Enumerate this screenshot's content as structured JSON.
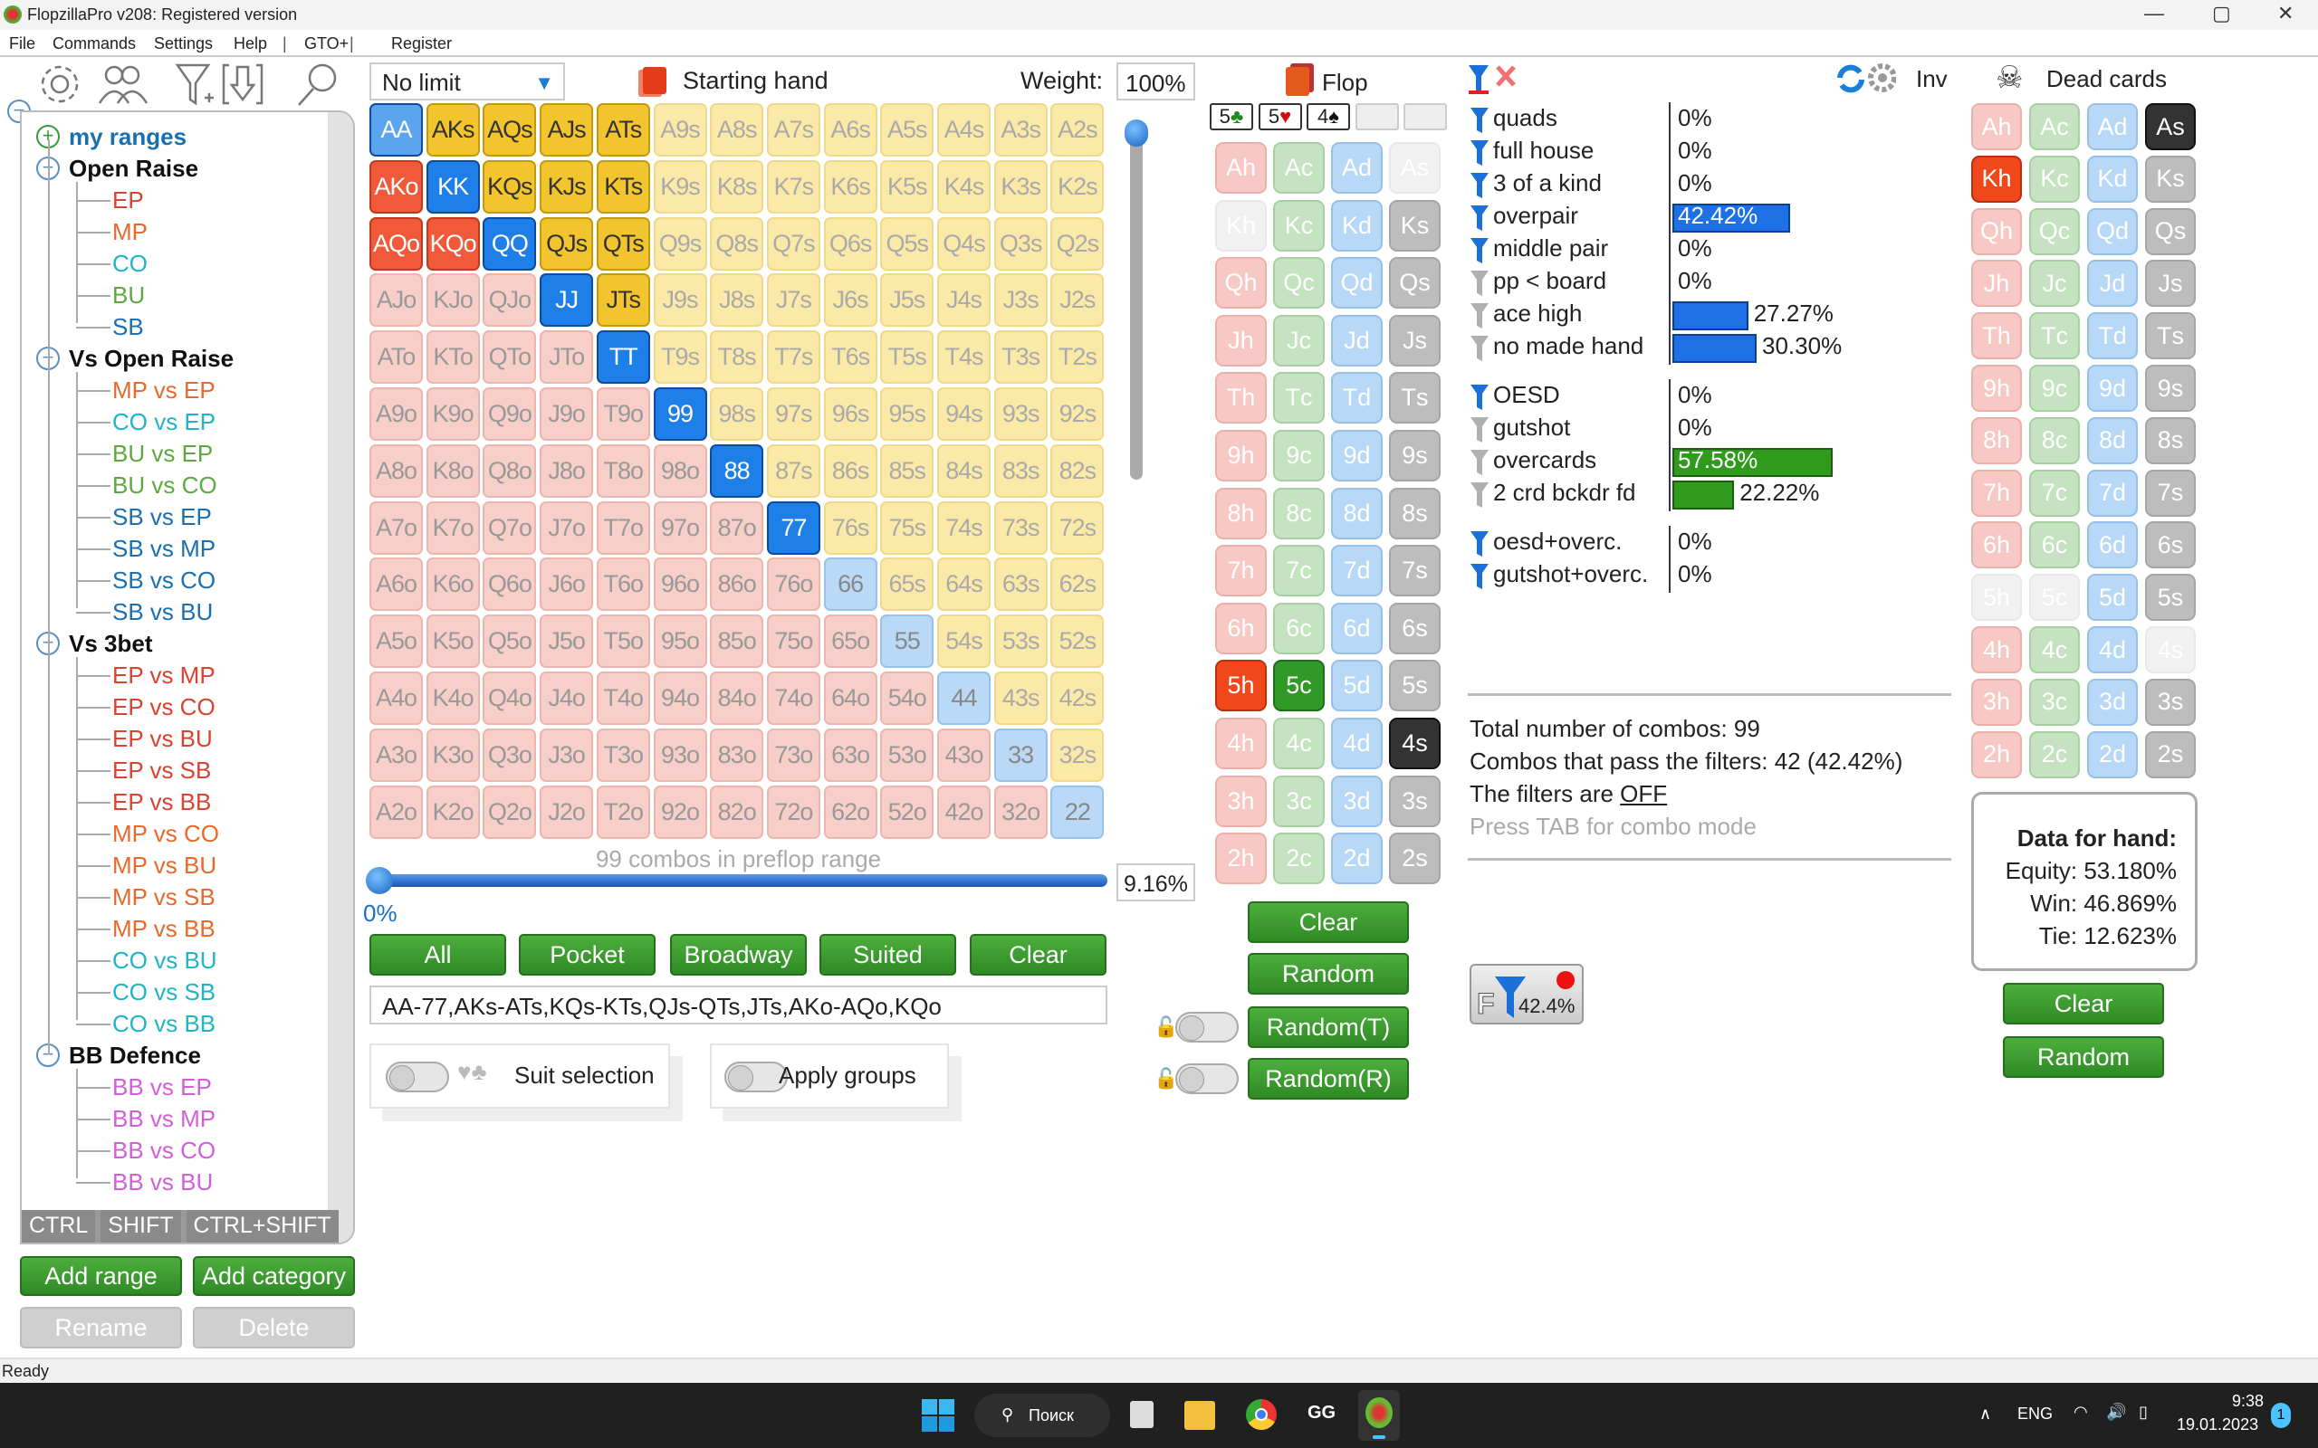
{
  "window": {
    "title": "FlopzillaPro v208: Registered version",
    "minimize": "—",
    "maximize": "▢",
    "close": "✕"
  },
  "menu": [
    "File",
    "Commands",
    "Settings",
    "Help",
    "|",
    "GTO+",
    "|",
    "Register"
  ],
  "toolbar_icons": [
    "gear-icon",
    "users-icon",
    "filter-add-icon",
    "import-icon",
    "search-icon"
  ],
  "tree": {
    "items": [
      {
        "label": "my ranges",
        "level": 0,
        "type": "root",
        "color": "#1a6fb0"
      },
      {
        "label": "Open Raise",
        "level": 0,
        "type": "cat",
        "color": "#111111"
      },
      {
        "label": "EP",
        "level": 1,
        "color": "#d9432f"
      },
      {
        "label": "MP",
        "level": 1,
        "color": "#e8692c"
      },
      {
        "label": "CO",
        "level": 1,
        "color": "#1fb5c8"
      },
      {
        "label": "BU",
        "level": 1,
        "color": "#5fa83f"
      },
      {
        "label": "SB",
        "level": 1,
        "color": "#1a6fb0"
      },
      {
        "label": "Vs Open Raise",
        "level": 0,
        "type": "cat",
        "color": "#111111"
      },
      {
        "label": "MP vs EP",
        "level": 1,
        "color": "#e8692c"
      },
      {
        "label": "CO vs EP",
        "level": 1,
        "color": "#1fb5c8"
      },
      {
        "label": "BU vs EP",
        "level": 1,
        "color": "#5fa83f"
      },
      {
        "label": "BU vs CO",
        "level": 1,
        "color": "#5fa83f"
      },
      {
        "label": "SB vs EP",
        "level": 1,
        "color": "#1a6fb0"
      },
      {
        "label": "SB vs MP",
        "level": 1,
        "color": "#1a6fb0"
      },
      {
        "label": "SB vs CO",
        "level": 1,
        "color": "#1a6fb0"
      },
      {
        "label": "SB vs BU",
        "level": 1,
        "color": "#1a6fb0"
      },
      {
        "label": "Vs 3bet",
        "level": 0,
        "type": "cat",
        "color": "#111111"
      },
      {
        "label": "EP vs MP",
        "level": 1,
        "color": "#d9432f"
      },
      {
        "label": "EP vs CO",
        "level": 1,
        "color": "#d9432f"
      },
      {
        "label": "EP vs BU",
        "level": 1,
        "color": "#d9432f"
      },
      {
        "label": "EP vs SB",
        "level": 1,
        "color": "#d9432f"
      },
      {
        "label": "EP vs BB",
        "level": 1,
        "color": "#d9432f"
      },
      {
        "label": "MP vs CO",
        "level": 1,
        "color": "#e8692c"
      },
      {
        "label": "MP vs BU",
        "level": 1,
        "color": "#e8692c"
      },
      {
        "label": "MP vs SB",
        "level": 1,
        "color": "#e8692c"
      },
      {
        "label": "MP vs BB",
        "level": 1,
        "color": "#e8692c"
      },
      {
        "label": "CO vs BU",
        "level": 1,
        "color": "#1fb5c8"
      },
      {
        "label": "CO vs SB",
        "level": 1,
        "color": "#1fb5c8"
      },
      {
        "label": "CO vs BB",
        "level": 1,
        "color": "#1fb5c8"
      },
      {
        "label": "BB Defence",
        "level": 0,
        "type": "cat",
        "color": "#111111"
      },
      {
        "label": "BB vs EP",
        "level": 1,
        "color": "#d35fd8"
      },
      {
        "label": "BB vs MP",
        "level": 1,
        "color": "#d35fd8"
      },
      {
        "label": "BB vs CO",
        "level": 1,
        "color": "#d35fd8"
      },
      {
        "label": "BB vs BU",
        "level": 1,
        "color": "#d35fd8"
      }
    ],
    "modkeys": [
      "CTRL",
      "SHIFT",
      "CTRL+SHIFT"
    ],
    "add_range": "Add range",
    "add_category": "Add category",
    "rename": "Rename",
    "delete": "Delete"
  },
  "range": {
    "game_type": "No limit",
    "starting_hand_label": "Starting hand",
    "weight_label": "Weight:",
    "weight": "100%",
    "matrix": [
      [
        "AA",
        "AKs",
        "AQs",
        "AJs",
        "ATs",
        "A9s",
        "A8s",
        "A7s",
        "A6s",
        "A5s",
        "A4s",
        "A3s",
        "A2s"
      ],
      [
        "AKo",
        "KK",
        "KQs",
        "KJs",
        "KTs",
        "K9s",
        "K8s",
        "K7s",
        "K6s",
        "K5s",
        "K4s",
        "K3s",
        "K2s"
      ],
      [
        "AQo",
        "KQo",
        "QQ",
        "QJs",
        "QTs",
        "Q9s",
        "Q8s",
        "Q7s",
        "Q6s",
        "Q5s",
        "Q4s",
        "Q3s",
        "Q2s"
      ],
      [
        "AJo",
        "KJo",
        "QJo",
        "JJ",
        "JTs",
        "J9s",
        "J8s",
        "J7s",
        "J6s",
        "J5s",
        "J4s",
        "J3s",
        "J2s"
      ],
      [
        "ATo",
        "KTo",
        "QTo",
        "JTo",
        "TT",
        "T9s",
        "T8s",
        "T7s",
        "T6s",
        "T5s",
        "T4s",
        "T3s",
        "T2s"
      ],
      [
        "A9o",
        "K9o",
        "Q9o",
        "J9o",
        "T9o",
        "99",
        "98s",
        "97s",
        "96s",
        "95s",
        "94s",
        "93s",
        "92s"
      ],
      [
        "A8o",
        "K8o",
        "Q8o",
        "J8o",
        "T8o",
        "98o",
        "88",
        "87s",
        "86s",
        "85s",
        "84s",
        "83s",
        "82s"
      ],
      [
        "A7o",
        "K7o",
        "Q7o",
        "J7o",
        "T7o",
        "97o",
        "87o",
        "77",
        "76s",
        "75s",
        "74s",
        "73s",
        "72s"
      ],
      [
        "A6o",
        "K6o",
        "Q6o",
        "J6o",
        "T6o",
        "96o",
        "86o",
        "76o",
        "66",
        "65s",
        "64s",
        "63s",
        "62s"
      ],
      [
        "A5o",
        "K5o",
        "Q5o",
        "J5o",
        "T5o",
        "95o",
        "85o",
        "75o",
        "65o",
        "55",
        "54s",
        "53s",
        "52s"
      ],
      [
        "A4o",
        "K4o",
        "Q4o",
        "J4o",
        "T4o",
        "94o",
        "84o",
        "74o",
        "64o",
        "54o",
        "44",
        "43s",
        "42s"
      ],
      [
        "A3o",
        "K3o",
        "Q3o",
        "J3o",
        "T3o",
        "93o",
        "83o",
        "73o",
        "63o",
        "53o",
        "43o",
        "33",
        "32s"
      ],
      [
        "A2o",
        "K2o",
        "Q2o",
        "J2o",
        "T2o",
        "92o",
        "82o",
        "72o",
        "62o",
        "52o",
        "42o",
        "32o",
        "22"
      ]
    ],
    "selected": [
      "AA",
      "AKs",
      "AQs",
      "AJs",
      "ATs",
      "AKo",
      "KK",
      "KQs",
      "KJs",
      "KTs",
      "AQo",
      "KQo",
      "QQ",
      "QJs",
      "QTs",
      "JJ",
      "JTs",
      "TT",
      "99",
      "88",
      "77"
    ],
    "combos_text": "99 combos in preflop range",
    "slider_min": "0%",
    "slider_value": "9.16%",
    "slider_fraction": 0.0916,
    "quick_buttons": [
      "All",
      "Pocket",
      "Broadway",
      "Suited",
      "Clear"
    ],
    "range_text": "AA-77,AKs-ATs,KQs-KTs,QJs-QTs,JTs,AKo-AQo,KQo",
    "suit_selection": "Suit selection",
    "apply_groups": "Apply groups"
  },
  "flop": {
    "label": "Flop",
    "board": [
      {
        "rank": "5",
        "suit": "♣",
        "color": "#1f8a1f"
      },
      {
        "rank": "5",
        "suit": "♥",
        "color": "#d01010"
      },
      {
        "rank": "4",
        "suit": "♠",
        "color": "#111"
      },
      {
        "rank": "",
        "suit": ""
      },
      {
        "rank": "",
        "suit": ""
      }
    ],
    "ranks": [
      "A",
      "K",
      "Q",
      "J",
      "T",
      "9",
      "8",
      "7",
      "6",
      "5",
      "4",
      "3",
      "2"
    ],
    "suits": [
      "h",
      "c",
      "d",
      "s"
    ],
    "selected": [
      "5h",
      "5c",
      "4s"
    ],
    "disabled": [
      "As",
      "Kh"
    ],
    "buttons": [
      "Clear",
      "Random",
      "Random(T)",
      "Random(R)"
    ]
  },
  "filters": {
    "rows": [
      {
        "label": "quads",
        "value": "0%",
        "pct": 0,
        "active": true
      },
      {
        "label": "full house",
        "value": "0%",
        "pct": 0,
        "active": true
      },
      {
        "label": "3 of a kind",
        "value": "0%",
        "pct": 0,
        "active": true
      },
      {
        "label": "overpair",
        "value": "42.42%",
        "pct": 42.42,
        "active": true,
        "bar": "#1f6fe5"
      },
      {
        "label": "middle pair",
        "value": "0%",
        "pct": 0,
        "active": true
      },
      {
        "label": "pp < board",
        "value": "0%",
        "pct": 0,
        "active": false
      },
      {
        "label": "ace high",
        "value": "27.27%",
        "pct": 27.27,
        "active": false,
        "bar": "#1f6fe5"
      },
      {
        "label": "no made hand",
        "value": "30.30%",
        "pct": 30.3,
        "active": false,
        "bar": "#1f6fe5"
      },
      {
        "label": "OESD",
        "value": "0%",
        "pct": 0,
        "active": true,
        "group": 2
      },
      {
        "label": "gutshot",
        "value": "0%",
        "pct": 0,
        "active": false,
        "group": 2
      },
      {
        "label": "overcards",
        "value": "57.58%",
        "pct": 57.58,
        "active": false,
        "bar": "#2f9a1c",
        "group": 2
      },
      {
        "label": "2 crd bckdr fd",
        "value": "22.22%",
        "pct": 22.22,
        "active": false,
        "bar": "#2f9a1c",
        "group": 2
      },
      {
        "label": "oesd+overc.",
        "value": "0%",
        "pct": 0,
        "active": true,
        "group": 3
      },
      {
        "label": "gutshot+overc.",
        "value": "0%",
        "pct": 0,
        "active": true,
        "group": 3
      }
    ],
    "total": "Total number of combos: 99",
    "pass": "Combos that pass the filters: 42 (42.42%)",
    "filters_are": "The filters are ",
    "filters_state": "OFF",
    "tab_hint": "Press TAB for combo mode",
    "f_button_value": "42.4%",
    "f_button_letter": "F"
  },
  "inv_label": "Inv",
  "dead": {
    "label": "Dead cards",
    "selected": [
      "As",
      "Kh"
    ],
    "disabled": [
      "5h",
      "5c",
      "4s"
    ],
    "buttons": [
      "Clear",
      "Random"
    ]
  },
  "hand_data": {
    "title": "Data for hand:",
    "equity": "Equity: 53.180%",
    "win": "Win: 46.869%",
    "tie": "Tie: 12.623%"
  },
  "status": "Ready",
  "taskbar": {
    "search": "Поиск",
    "lang": "ENG",
    "time": "9:38",
    "date": "19.01.2023",
    "notifications": "1"
  }
}
